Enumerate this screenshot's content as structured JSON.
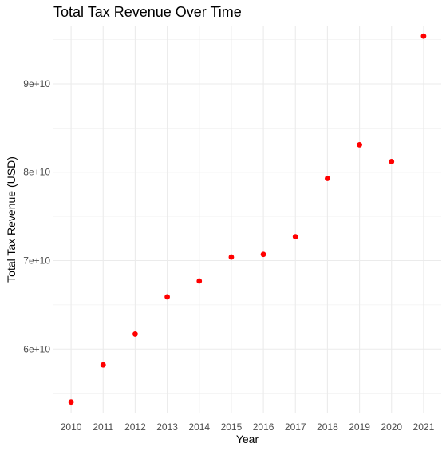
{
  "chart_data": {
    "type": "scatter",
    "title": "Total Tax Revenue Over Time",
    "xlabel": "Year",
    "ylabel": "Total Tax Revenue (USD)",
    "x": [
      2010,
      2011,
      2012,
      2013,
      2014,
      2015,
      2016,
      2017,
      2018,
      2019,
      2020,
      2021
    ],
    "y": [
      54000000000,
      58200000000,
      61700000000,
      65900000000,
      67700000000,
      70400000000,
      70700000000,
      72700000000,
      79300000000,
      83100000000,
      81200000000,
      95400000000
    ],
    "xlim": [
      2009.45,
      2021.55
    ],
    "ylim": [
      52800000000,
      96500000000
    ],
    "x_ticks": [
      "2010",
      "2011",
      "2012",
      "2013",
      "2014",
      "2015",
      "2016",
      "2017",
      "2018",
      "2019",
      "2020",
      "2021"
    ],
    "y_tick_values": [
      60000000000,
      70000000000,
      80000000000,
      90000000000
    ],
    "y_ticks": [
      "6e+10",
      "7e+10",
      "8e+10",
      "9e+10"
    ],
    "grid": true,
    "point_color": "#ff0000",
    "grid_color": "#ebebeb"
  }
}
